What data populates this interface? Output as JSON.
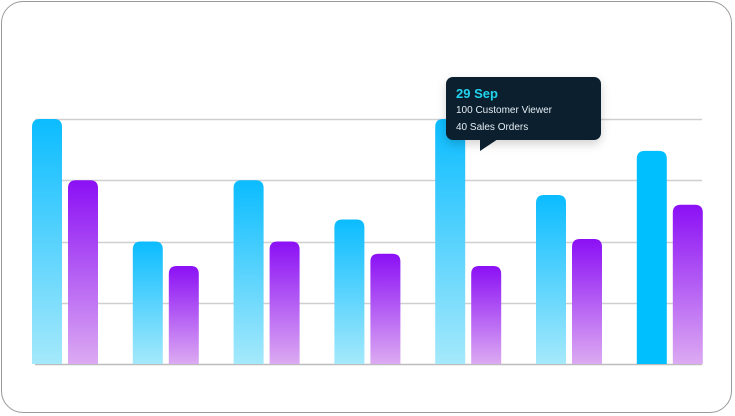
{
  "chart_data": {
    "type": "bar",
    "categories": [
      "",
      "",
      "",
      "",
      "29 Sep",
      "",
      ""
    ],
    "series": [
      {
        "name": "Customer Viewer",
        "values": [
          100,
          50,
          75,
          59,
          100,
          69,
          87
        ]
      },
      {
        "name": "Sales Orders",
        "values": [
          75,
          40,
          50,
          45,
          40,
          51,
          65
        ]
      }
    ],
    "ylim": [
      0,
      100
    ],
    "grid": true,
    "colors": {
      "series1_top": "#0bbcff",
      "series1_bottom": "#a5e9fb",
      "series2_top": "#8b10f5",
      "series2_bottom": "#dcaaf2",
      "highlight": "#00bfff"
    },
    "highlighted_index": 6
  },
  "tooltip": {
    "date": "29 Sep",
    "line1": "100 Customer Viewer",
    "line2": "40 Sales Orders"
  }
}
